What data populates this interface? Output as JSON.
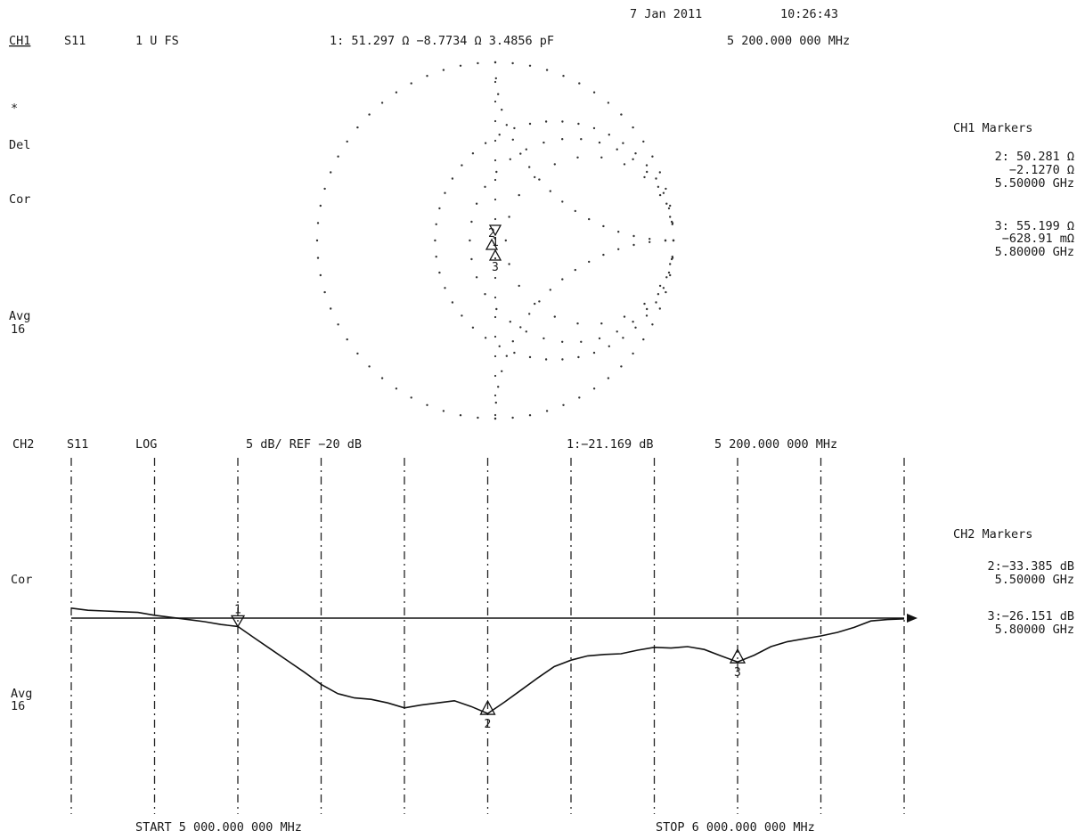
{
  "header": {
    "date": "7 Jan 2011",
    "time": "10:26:43"
  },
  "ch1": {
    "channel": "CH1",
    "param": "S11",
    "scale": "1 U FS",
    "marker_readout": "1: 51.297 Ω  −8.7734 Ω  3.4856 pF",
    "marker_freq": "5 200.000 000 MHz",
    "side": [
      "*",
      "Del",
      "Cor",
      "Avg",
      "16"
    ],
    "markers_title": "CH1 Markers",
    "markers": [
      {
        "l1": "2: 50.281 Ω",
        "l2": "−2.1270 Ω",
        "l3": "5.50000 GHz"
      },
      {
        "l1": "3: 55.199 Ω",
        "l2": "−628.91 mΩ",
        "l3": "5.80000 GHz"
      }
    ]
  },
  "ch2": {
    "channel": "CH2",
    "param": "S11",
    "format": "LOG",
    "scale": "5 dB/ REF  −20  dB",
    "marker_readout": "1:−21.169 dB",
    "marker_freq": "5 200.000 000 MHz",
    "side": [
      "Cor",
      "Avg",
      "16"
    ],
    "markers_title": "CH2 Markers",
    "markers": [
      {
        "l1": "2:−33.385 dB",
        "l2": "5.50000 GHz"
      },
      {
        "l1": "3:−26.151 dB",
        "l2": "5.80000 GHz"
      }
    ],
    "start_label": "START 5 000.000 000 MHz",
    "stop_label": "STOP 6 000.000 000 MHz"
  },
  "chart_data": [
    {
      "type": "smith",
      "channel": "CH1",
      "parameter": "S11",
      "title": "CH1 S11 1 U FS",
      "marker_labels": [
        "1",
        "2",
        "3"
      ],
      "markers": [
        {
          "id": 1,
          "freq_GHz": 5.2,
          "R_ohm": 51.297,
          "X_ohm": -8.7734,
          "C_pF": 3.4856
        },
        {
          "id": 2,
          "freq_GHz": 5.5,
          "R_ohm": 50.281,
          "X_ohm": -2.127
        },
        {
          "id": 3,
          "freq_GHz": 5.8,
          "R_ohm": 55.199,
          "X_ohm": -0.62891
        }
      ]
    },
    {
      "type": "line",
      "channel": "CH2",
      "parameter": "S11",
      "format": "LOG",
      "ylabel": "",
      "xlabel": "",
      "scale_db_per_div": 5,
      "ref_db": -20,
      "ylim": [
        -47.5,
        2.5
      ],
      "xlim": [
        5.0,
        6.0
      ],
      "x_unit": "GHz",
      "grid": true,
      "marker_labels": [
        "1",
        "2",
        "3"
      ],
      "markers": [
        {
          "id": 1,
          "x": 5.2,
          "y": -21.169
        },
        {
          "id": 2,
          "x": 5.5,
          "y": -33.385
        },
        {
          "id": 3,
          "x": 5.8,
          "y": -26.151
        }
      ],
      "series": [
        {
          "x": [
            5.0,
            5.02,
            5.04,
            5.06,
            5.08,
            5.1,
            5.12,
            5.14,
            5.16,
            5.18,
            5.2,
            5.22,
            5.24,
            5.26,
            5.28,
            5.3,
            5.32,
            5.34,
            5.36,
            5.38,
            5.4,
            5.42,
            5.44,
            5.46,
            5.48,
            5.5,
            5.52,
            5.54,
            5.56,
            5.58,
            5.6,
            5.62,
            5.64,
            5.66,
            5.68,
            5.7,
            5.72,
            5.74,
            5.76,
            5.78,
            5.8,
            5.82,
            5.84,
            5.86,
            5.88,
            5.9,
            5.92,
            5.94,
            5.96,
            5.98,
            6.0
          ],
          "values": [
            -18.6,
            -18.9,
            -19.0,
            -19.1,
            -19.2,
            -19.6,
            -19.9,
            -20.2,
            -20.5,
            -20.9,
            -21.169,
            -22.8,
            -24.4,
            -26.0,
            -27.6,
            -29.3,
            -30.6,
            -31.2,
            -31.4,
            -31.9,
            -32.6,
            -32.2,
            -31.9,
            -31.6,
            -32.4,
            -33.385,
            -31.8,
            -30.1,
            -28.4,
            -26.8,
            -25.9,
            -25.3,
            -25.1,
            -25.0,
            -24.5,
            -24.1,
            -24.2,
            -24.0,
            -24.4,
            -25.3,
            -26.151,
            -25.2,
            -24.0,
            -23.3,
            -22.9,
            -22.5,
            -22.0,
            -21.3,
            -20.4,
            -20.2,
            -20.1
          ]
        }
      ]
    }
  ]
}
